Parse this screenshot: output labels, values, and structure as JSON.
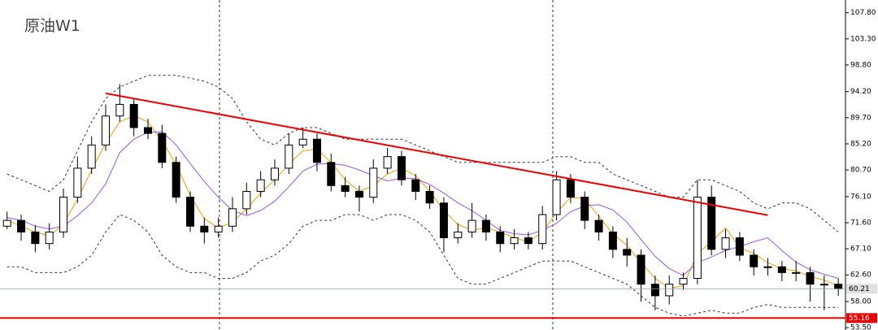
{
  "chart_data": {
    "type": "candlestick",
    "title": "原油W1",
    "open": [
      71,
      72,
      70,
      68,
      70,
      76,
      81,
      85,
      90,
      92,
      88,
      87,
      82,
      76,
      71,
      70,
      71,
      74,
      77,
      79,
      81,
      85,
      86,
      82,
      78,
      77,
      76,
      81,
      83,
      79,
      77,
      75,
      69,
      70,
      72,
      70,
      68,
      69,
      68,
      73,
      79,
      76,
      72,
      70,
      67,
      66,
      61,
      59,
      61,
      62,
      76,
      67,
      69,
      66,
      64,
      64,
      63,
      63,
      61,
      61
    ],
    "high": [
      73.5,
      73,
      71.2,
      71.5,
      77.5,
      83,
      86.5,
      92,
      95.5,
      93,
      89.5,
      88.5,
      83,
      77,
      72.5,
      72.5,
      76,
      78.5,
      80.5,
      82.5,
      87,
      88,
      87,
      83.5,
      79.5,
      78,
      82.5,
      84.5,
      84,
      80,
      78,
      76,
      71.5,
      75,
      73,
      71,
      70.5,
      70,
      74.5,
      80.5,
      80,
      77,
      73,
      71,
      69,
      67,
      62.5,
      62.5,
      63,
      79,
      78,
      70.5,
      70,
      67,
      65.5,
      65,
      65,
      64,
      62.5,
      62
    ],
    "low": [
      70.5,
      68.5,
      66.5,
      67,
      69,
      75,
      80,
      84,
      89,
      86.5,
      86,
      81,
      75,
      70,
      68,
      69,
      70,
      73,
      76,
      78,
      80,
      84.5,
      80.5,
      77,
      76,
      73.5,
      75,
      80,
      78,
      75.5,
      74,
      66.5,
      68,
      69,
      68.5,
      66.5,
      67,
      67,
      67,
      72,
      75,
      70.5,
      68.5,
      65.5,
      64,
      58,
      56.5,
      57.5,
      60,
      61,
      66,
      65.5,
      65,
      62.5,
      62.5,
      61.5,
      61.5,
      58,
      56.5,
      59
    ],
    "close": [
      72,
      70,
      68,
      70,
      76,
      81,
      85,
      90,
      92,
      88,
      87,
      82,
      76,
      71,
      70,
      71,
      74,
      77,
      79,
      81,
      85,
      86,
      82,
      78,
      77,
      76,
      81,
      83,
      79,
      77,
      75,
      69,
      70,
      72,
      70,
      68,
      69,
      68,
      73,
      79,
      76,
      72,
      70,
      67,
      66,
      61,
      59,
      61,
      62,
      76,
      67,
      69,
      66,
      64,
      64,
      63,
      63,
      61,
      61,
      60.21
    ],
    "up_color": "#ffffff",
    "down_color": "#000000",
    "lines": [
      {
        "color": "#f0a000",
        "dash": false,
        "values": [
          72,
          71,
          70,
          69.3,
          71.3,
          75.7,
          80.7,
          85.3,
          89,
          90,
          89,
          85.7,
          81.7,
          76.3,
          72.3,
          70.7,
          71.7,
          74,
          76.7,
          79,
          81.7,
          84,
          84.3,
          82,
          79,
          77,
          78,
          80,
          81,
          79.7,
          77,
          73.7,
          71.3,
          70.3,
          70.7,
          70,
          69,
          68.3,
          70,
          73.3,
          76,
          75.7,
          72.7,
          69.7,
          67.7,
          64.7,
          62,
          60.3,
          60.7,
          66.3,
          68.3,
          70.7,
          67.3,
          66.3,
          64.7,
          63.7,
          63.3,
          62.3,
          61.7,
          60.7
        ]
      },
      {
        "color": "#9955ee",
        "dash": false,
        "values": [
          72.5,
          72,
          71,
          70.5,
          71,
          72.8,
          75,
          78.3,
          83.7,
          86,
          87.2,
          87.3,
          85,
          81.8,
          78.7,
          76,
          73.7,
          72.8,
          73.7,
          75.3,
          77.8,
          80.5,
          81.7,
          81.8,
          81.5,
          80.7,
          79.7,
          78.8,
          79.3,
          79.2,
          78.2,
          76.7,
          75,
          73.7,
          72,
          70.3,
          69.7,
          69.5,
          70.3,
          71.5,
          73.5,
          74.5,
          74.7,
          73.8,
          71.7,
          68.7,
          65.8,
          63.7,
          62.5,
          64.7,
          65.7,
          66.8,
          67.5,
          68.3,
          69,
          66.8,
          64.8,
          63.5,
          62.7,
          62
        ]
      },
      {
        "color": "#333333",
        "dash": true,
        "values": [
          80,
          79,
          78,
          77,
          79,
          84,
          89,
          93,
          95,
          96,
          97,
          97,
          97,
          96.5,
          96,
          95,
          93,
          89,
          86,
          85,
          87,
          88,
          88,
          87,
          86,
          86,
          86,
          86,
          86,
          85,
          84,
          83,
          82,
          82,
          82,
          82,
          82,
          82,
          82,
          83,
          83,
          82,
          82,
          80,
          79,
          78,
          77,
          76,
          76,
          79,
          79,
          78,
          77,
          75,
          74,
          75,
          75,
          74,
          72,
          70
        ]
      },
      {
        "color": "#333333",
        "dash": true,
        "values": [
          64,
          64,
          63,
          63,
          63,
          64,
          66,
          70,
          73,
          72,
          70,
          66,
          64,
          63,
          63,
          62,
          62,
          63,
          65,
          66,
          68,
          71,
          72,
          72,
          73,
          73,
          72,
          73,
          73,
          72,
          70,
          66,
          62,
          61,
          61,
          62,
          63,
          64,
          65,
          65,
          65,
          64,
          63,
          62,
          61,
          59,
          57,
          56,
          55.5,
          56,
          56.5,
          56,
          56,
          57,
          57.5,
          57,
          57,
          57,
          57,
          57
        ]
      }
    ],
    "trendline": {
      "color": "#ee0000",
      "start": [
        7,
        93.9
      ],
      "end": [
        54,
        72.9
      ]
    },
    "hline": {
      "value": 55.16,
      "color": "#ee0000"
    },
    "ylim": [
      53.1,
      110.0
    ],
    "yticks": [
      {
        "value": 107.8,
        "label": "107.80"
      },
      {
        "value": 103.3,
        "label": "103.30"
      },
      {
        "value": 98.8,
        "label": "98.80"
      },
      {
        "value": 94.2,
        "label": "94.20"
      },
      {
        "value": 89.7,
        "label": "89.70"
      },
      {
        "value": 85.2,
        "label": "85.20"
      },
      {
        "value": 80.7,
        "label": "80.70"
      },
      {
        "value": 76.1,
        "label": "76.10"
      },
      {
        "value": 71.6,
        "label": "71.60"
      },
      {
        "value": 67.1,
        "label": "67.10"
      },
      {
        "value": 62.6,
        "label": "62.60"
      },
      {
        "value": 58.0,
        "label": "58.00"
      },
      {
        "value": 53.5,
        "label": "53.50"
      }
    ]
  }
}
